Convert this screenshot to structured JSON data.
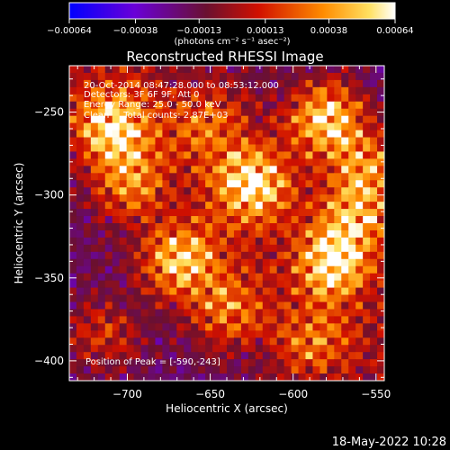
{
  "chart_data": {
    "type": "heatmap",
    "title": "Reconstructed RHESSI Image",
    "xlabel": "Heliocentric X (arcsec)",
    "ylabel": "Heliocentric Y (arcsec)",
    "xlim": [
      -735,
      -545
    ],
    "ylim": [
      -412,
      -222
    ],
    "x_ticks": [
      -700,
      -650,
      -600,
      -550
    ],
    "x_tick_labels": [
      "−700",
      "−650",
      "−600",
      "−550"
    ],
    "y_ticks": [
      -250,
      -300,
      -350,
      -400
    ],
    "y_tick_labels": [
      "−250",
      "−300",
      "−350",
      "−400"
    ],
    "colorbar": {
      "range": [
        -0.00064,
        0.00064
      ],
      "ticks": [
        -0.00064,
        -0.00038,
        -0.00013,
        0.00013,
        0.00038,
        0.00064
      ],
      "tick_labels": [
        "−0.00064",
        "−0.00038",
        "−0.00013",
        "0.00013",
        "0.00038",
        "0.00064"
      ],
      "unit_label": "(photons cm⁻² s⁻¹ asec⁻²)",
      "colors": [
        "#0000ff",
        "#7b00c8",
        "#7a1a2a",
        "#ff2000",
        "#ffaa00",
        "#ffffff"
      ]
    },
    "peak": [
      -590,
      -243
    ],
    "sources": [
      {
        "x": -580,
        "y": -255,
        "amp": 1.0
      },
      {
        "x": -625,
        "y": -293,
        "amp": 0.95
      },
      {
        "x": -668,
        "y": -340,
        "amp": 0.9
      },
      {
        "x": -710,
        "y": -258,
        "amp": 0.85
      },
      {
        "x": -700,
        "y": -292,
        "amp": 0.6
      },
      {
        "x": -553,
        "y": -282,
        "amp": 0.55
      },
      {
        "x": -575,
        "y": -340,
        "amp": 0.9
      },
      {
        "x": -560,
        "y": -310,
        "amp": 0.7
      },
      {
        "x": -640,
        "y": -370,
        "amp": 0.6
      },
      {
        "x": -590,
        "y": -390,
        "amp": 0.5
      },
      {
        "x": -650,
        "y": -255,
        "amp": 0.45
      },
      {
        "x": -715,
        "y": -385,
        "amp": 0.4
      }
    ]
  },
  "annotations": {
    "line1": "20-Oct-2014 08:47:28.000 to 08:53:12.000",
    "line2": "Detectors: 3F 6F 9F, Att 0",
    "line3": "Energy Range: 25.0 - 50.0 keV",
    "line4": "Clean     Total counts: 2.87E+03",
    "peak_label": "Position of Peak = [-590,-243]"
  },
  "footer": {
    "timestamp": "18-May-2022 10:28"
  }
}
